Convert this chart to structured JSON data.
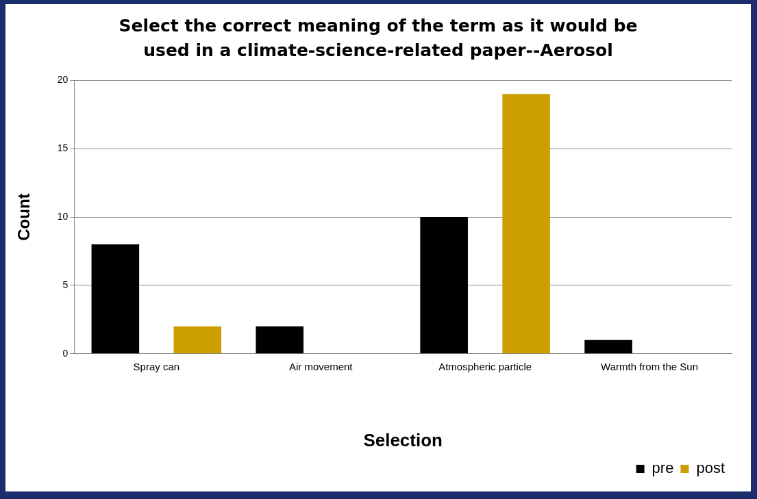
{
  "chart_data": {
    "type": "bar",
    "title": "Select the correct meaning of the term as it would be used in a climate-science-related paper--Aerosol",
    "xlabel": "Selection",
    "ylabel": "Count",
    "categories": [
      "Spray can",
      "Air movement",
      "Atmospheric particle",
      "Warmth from the Sun"
    ],
    "series": [
      {
        "name": "pre",
        "color": "#000000",
        "values": [
          8,
          2,
          10,
          1
        ]
      },
      {
        "name": "post",
        "color": "#cc9f00",
        "values": [
          2,
          0,
          19,
          0
        ]
      }
    ],
    "ylim": [
      0,
      20
    ],
    "yticks": [
      0,
      5,
      10,
      15,
      20
    ],
    "grid": "y",
    "legend": "bottom right"
  }
}
